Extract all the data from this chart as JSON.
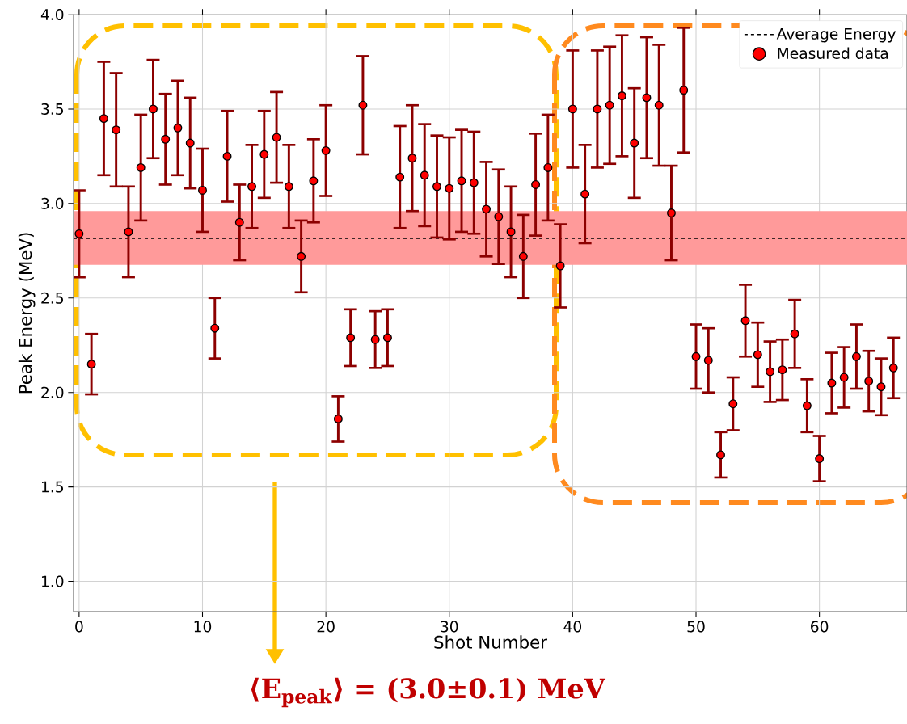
{
  "chart_data": {
    "type": "scatter",
    "xlabel": "Shot Number",
    "ylabel": "Peak Energy (MeV)",
    "annotations": [
      "⟨E$_{peak}$⟩ = (3.0±0.1) MeV"
    ],
    "x": [
      0,
      1,
      2,
      3,
      4,
      5,
      6,
      7,
      8,
      9,
      10,
      11,
      12,
      13,
      14,
      15,
      16,
      17,
      18,
      19,
      20,
      21,
      22,
      23,
      24,
      25,
      26,
      27,
      28,
      29,
      30,
      31,
      32,
      33,
      34,
      35,
      36,
      37,
      38,
      39,
      40,
      41,
      42,
      43,
      44,
      45,
      46,
      47,
      48,
      49,
      50,
      51,
      52,
      53,
      54,
      55,
      56,
      57,
      58,
      59,
      60,
      61,
      62,
      63,
      64,
      65,
      66
    ],
    "series": [
      {
        "name": "Measured data",
        "color": "#ff0000",
        "values": [
          2.84,
          2.15,
          3.45,
          3.39,
          2.85,
          3.19,
          3.5,
          3.34,
          3.4,
          3.32,
          3.07,
          2.34,
          3.25,
          2.9,
          3.09,
          3.26,
          3.35,
          3.09,
          2.72,
          3.12,
          3.28,
          1.86,
          2.29,
          3.52,
          2.28,
          2.29,
          3.14,
          3.24,
          3.15,
          3.09,
          3.08,
          3.12,
          3.11,
          2.97,
          2.93,
          2.85,
          2.72,
          3.1,
          3.19,
          2.67,
          3.5,
          3.05,
          3.5,
          3.52,
          3.57,
          3.32,
          3.56,
          3.52,
          2.95,
          3.6,
          2.19,
          2.17,
          1.67,
          1.94,
          2.38,
          2.2,
          2.11,
          2.12,
          2.31,
          1.93,
          1.65,
          2.05,
          2.08,
          2.19,
          2.06,
          2.03,
          2.13
        ],
        "errors": [
          0.23,
          0.16,
          0.3,
          0.3,
          0.24,
          0.28,
          0.26,
          0.24,
          0.25,
          0.24,
          0.22,
          0.16,
          0.24,
          0.2,
          0.22,
          0.23,
          0.24,
          0.22,
          0.19,
          0.22,
          0.24,
          0.12,
          0.15,
          0.26,
          0.15,
          0.15,
          0.27,
          0.28,
          0.27,
          0.27,
          0.27,
          0.27,
          0.27,
          0.25,
          0.25,
          0.24,
          0.22,
          0.27,
          0.28,
          0.22,
          0.31,
          0.26,
          0.31,
          0.31,
          0.32,
          0.29,
          0.32,
          0.32,
          0.25,
          0.33,
          0.17,
          0.17,
          0.12,
          0.14,
          0.19,
          0.17,
          0.16,
          0.16,
          0.18,
          0.14,
          0.12,
          0.16,
          0.16,
          0.17,
          0.16,
          0.15,
          0.16
        ]
      }
    ],
    "marker": "circle",
    "ref_lines": [
      {
        "axis": "y",
        "value": 2.815,
        "label": "Average Energy",
        "color": "#000000",
        "line_style": "dashed"
      }
    ],
    "bands": [
      {
        "axis": "y",
        "from": 2.675,
        "to": 2.96,
        "color": "#ff9a9a"
      }
    ],
    "xlim": [
      -0.45,
      67.1
    ],
    "ylim": [
      0.84,
      4.0
    ],
    "xticks": [
      0,
      10,
      20,
      30,
      40,
      50,
      60
    ],
    "yticks": [
      {
        "value": 1,
        "label": "1.0"
      },
      {
        "value": 1.5,
        "label": "1.5"
      },
      {
        "value": 2,
        "label": "2.0"
      },
      {
        "value": 2.5,
        "label": "2.5"
      },
      {
        "value": 3,
        "label": "3.0"
      },
      {
        "value": 3.5,
        "label": "3.5"
      },
      {
        "value": 4,
        "label": "4.0"
      }
    ],
    "grid": true,
    "legend": "top right"
  }
}
